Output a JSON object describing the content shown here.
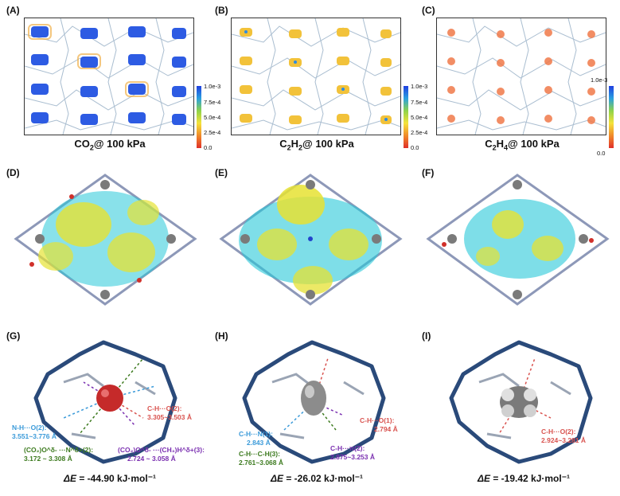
{
  "panels": {
    "A": {
      "letter": "(A)",
      "gas": "CO",
      "sub": "2",
      "suffix": "@ 100 kPa"
    },
    "B": {
      "letter": "(B)",
      "gas": "C",
      "sub1": "2",
      "mid": "H",
      "sub2": "2",
      "suffix": "@ 100 kPa"
    },
    "C": {
      "letter": "(C)",
      "gas": "C",
      "sub1": "2",
      "mid": "H",
      "sub2": "4",
      "suffix": "@ 100 kPa"
    },
    "D": {
      "letter": "(D)"
    },
    "E": {
      "letter": "(E)"
    },
    "F": {
      "letter": "(F)"
    },
    "G": {
      "letter": "(G)",
      "energy_label": "ΔE",
      "energy_value": "= -44.90 kJ·mol⁻¹"
    },
    "H": {
      "letter": "(H)",
      "energy_label": "ΔE",
      "energy_value": "= -26.02 kJ·mol⁻¹"
    },
    "I": {
      "letter": "(I)",
      "energy_label": "ΔE",
      "energy_value": "= -19.42 kJ·mol⁻¹"
    }
  },
  "colorbar": {
    "ticks": [
      "1.0e-3",
      "7.5e-4",
      "5.0e-4",
      "2.5e-4",
      "0.0"
    ]
  },
  "annotations": {
    "G": {
      "nh_label": "N-H···O(2):",
      "nh_range": "3.551~3.776 Å",
      "ch_label": "C-H···O(2):",
      "ch_range": "3.305~3.503 Å",
      "co_label": "(CO₂)O^δ- ···N^δ+(2):",
      "co_range": "3.172 ~ 3.308 Å",
      "ch3_label": "(CO₂)O^δ- ···(CH₃)H^δ+(3):",
      "ch3_range": "2.724 ~ 3.058 Å"
    },
    "H": {
      "chn_label": "C-H···N(1):",
      "chn_range": "2.843 Å",
      "cho_label": "C-H···O(1):",
      "cho_range": "2.794 Å",
      "chc_label": "C-H···C-H(3):",
      "chc_range": "2.761~3.068 Å",
      "chpi_label": "C-H···π(2):",
      "chpi_range": "2.875~3.253 Å"
    },
    "I": {
      "cho_label": "C-H···O(2):",
      "cho_range": "2.924~3.281 Å"
    }
  },
  "colors": {
    "blue_label": "#3a9ad9",
    "red_label": "#d9534f",
    "green_label": "#3c7a1e",
    "purple_label": "#7a2fb0",
    "framework": "#9fb3c8",
    "iso_yellow": "#e6e233",
    "iso_cyan": "#28c8d8"
  }
}
